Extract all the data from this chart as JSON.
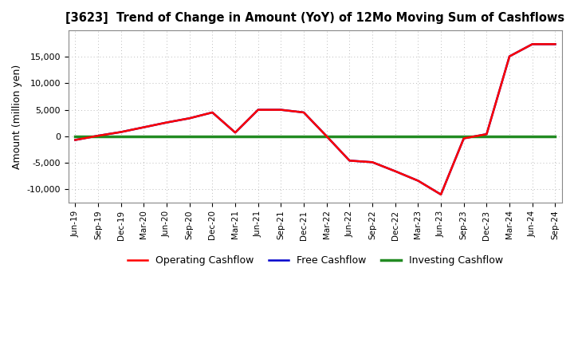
{
  "title": "[3623]  Trend of Change in Amount (YoY) of 12Mo Moving Sum of Cashflows",
  "ylabel": "Amount (million yen)",
  "x_labels": [
    "Jun-19",
    "Sep-19",
    "Dec-19",
    "Mar-20",
    "Jun-20",
    "Sep-20",
    "Dec-20",
    "Mar-21",
    "Jun-21",
    "Sep-21",
    "Dec-21",
    "Mar-22",
    "Jun-22",
    "Sep-22",
    "Dec-22",
    "Mar-23",
    "Jun-23",
    "Sep-23",
    "Dec-23",
    "Mar-24",
    "Jun-24",
    "Sep-24"
  ],
  "operating_cashflow": [
    -700,
    100,
    800,
    1700,
    2600,
    3400,
    4500,
    700,
    5000,
    5000,
    4500,
    0,
    -4600,
    -4900,
    -6600,
    -8400,
    -11000,
    -400,
    400,
    15100,
    17400,
    17400
  ],
  "investing_cashflow": [
    0,
    0,
    0,
    0,
    0,
    0,
    0,
    0,
    0,
    0,
    0,
    0,
    0,
    0,
    0,
    0,
    0,
    0,
    0,
    0,
    0,
    0
  ],
  "free_cashflow": [
    -700,
    100,
    800,
    1700,
    2600,
    3400,
    4500,
    700,
    5000,
    5000,
    4500,
    0,
    -4600,
    -4900,
    -6600,
    -8400,
    -11000,
    -400,
    400,
    15100,
    17400,
    17400
  ],
  "operating_color": "#ff0000",
  "investing_color": "#228B22",
  "free_color": "#0000cc",
  "background_color": "#ffffff",
  "grid_color": "#bbbbbb",
  "ylim": [
    -12500,
    20000
  ],
  "yticks": [
    -10000,
    -5000,
    0,
    5000,
    10000,
    15000
  ],
  "line_width": 1.8
}
